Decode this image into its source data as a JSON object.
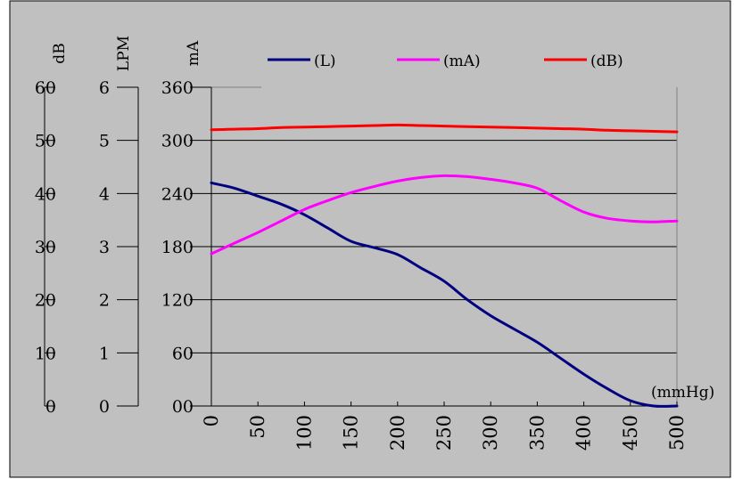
{
  "chart_data": {
    "type": "line",
    "xlabel": "(mmHg)",
    "x": [
      0,
      25,
      50,
      75,
      100,
      125,
      150,
      175,
      200,
      225,
      250,
      275,
      300,
      325,
      350,
      375,
      400,
      425,
      450,
      475,
      500
    ],
    "x_ticks": [
      "0",
      "50",
      "100",
      "150",
      "200",
      "250",
      "300",
      "350",
      "400",
      "450",
      "500"
    ],
    "xlim": [
      0,
      500
    ],
    "axes": [
      {
        "id": "db",
        "label": "dB",
        "ticks": [
          "0",
          "10",
          "20",
          "30",
          "40",
          "50",
          "60"
        ],
        "ylim": [
          0,
          60
        ]
      },
      {
        "id": "lpm",
        "label": "LPM",
        "ticks": [
          "0",
          "1",
          "2",
          "3",
          "4",
          "5",
          "6"
        ],
        "ylim": [
          0,
          6
        ]
      },
      {
        "id": "ma",
        "label": "mA",
        "ticks": [
          "00",
          "60",
          "120",
          "180",
          "240",
          "300",
          "360"
        ],
        "ylim": [
          0,
          360
        ]
      }
    ],
    "grid": true,
    "legend_position": "top",
    "series": [
      {
        "name": "(L)",
        "axis": "lpm",
        "color": "#000080",
        "values": [
          4.2,
          4.1,
          3.95,
          3.8,
          3.6,
          3.35,
          3.1,
          2.98,
          2.85,
          2.6,
          2.35,
          2.0,
          1.7,
          1.45,
          1.2,
          0.9,
          0.6,
          0.33,
          0.1,
          0.0,
          0.0
        ]
      },
      {
        "name": "(mA)",
        "axis": "ma",
        "color": "#ff00ff",
        "values": [
          172,
          184,
          196,
          209,
          222,
          232,
          241,
          248,
          254,
          258,
          260,
          259,
          256,
          252,
          246,
          232,
          219,
          212,
          209,
          208,
          209
        ]
      },
      {
        "name": "(dB)",
        "axis": "db",
        "color": "#ff0000",
        "values": [
          52.0,
          52.1,
          52.2,
          52.4,
          52.5,
          52.6,
          52.7,
          52.8,
          52.9,
          52.8,
          52.7,
          52.6,
          52.5,
          52.4,
          52.3,
          52.2,
          52.1,
          51.9,
          51.8,
          51.7,
          51.6
        ]
      }
    ]
  }
}
